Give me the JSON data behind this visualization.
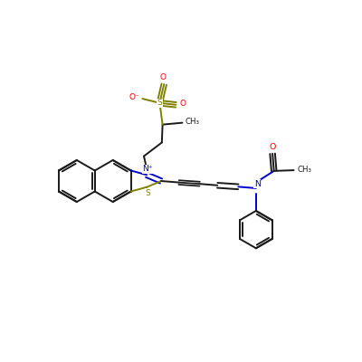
{
  "bg_color": "#ffffff",
  "bond_color": "#1a1a1a",
  "sulfur_color": "#808000",
  "nitrogen_color": "#0000cd",
  "oxygen_color": "#ff0000",
  "figsize": [
    4.0,
    4.0
  ],
  "dpi": 100,
  "lw": 1.4,
  "db_off": 0.07,
  "ring_r": 0.58,
  "ph_r": 0.52,
  "xlim": [
    0,
    10
  ],
  "ylim": [
    1,
    11
  ]
}
